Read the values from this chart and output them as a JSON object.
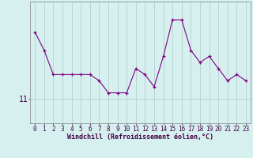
{
  "x": [
    0,
    1,
    2,
    3,
    4,
    5,
    6,
    7,
    8,
    9,
    10,
    11,
    12,
    13,
    14,
    15,
    16,
    17,
    18,
    19,
    20,
    21,
    22,
    23
  ],
  "y": [
    16.5,
    15.0,
    13.0,
    13.0,
    13.0,
    13.0,
    13.0,
    12.5,
    11.5,
    11.5,
    11.5,
    13.5,
    13.0,
    12.0,
    14.5,
    17.5,
    17.5,
    15.0,
    14.0,
    14.5,
    13.5,
    12.5,
    13.0,
    12.5
  ],
  "line_color": "#800080",
  "marker": "+",
  "marker_size": 3,
  "bg_color": "#d6f0f0",
  "grid_color": "#b0c8c8",
  "axis_color": "#808080",
  "xlabel": "Windchill (Refroidissement éolien,°C)",
  "ytick_labels": [
    "11"
  ],
  "ytick_values": [
    11
  ],
  "xlim": [
    -0.5,
    23.5
  ],
  "ylim": [
    9.0,
    19.0
  ],
  "label_fontsize": 6,
  "tick_fontsize": 5.5
}
